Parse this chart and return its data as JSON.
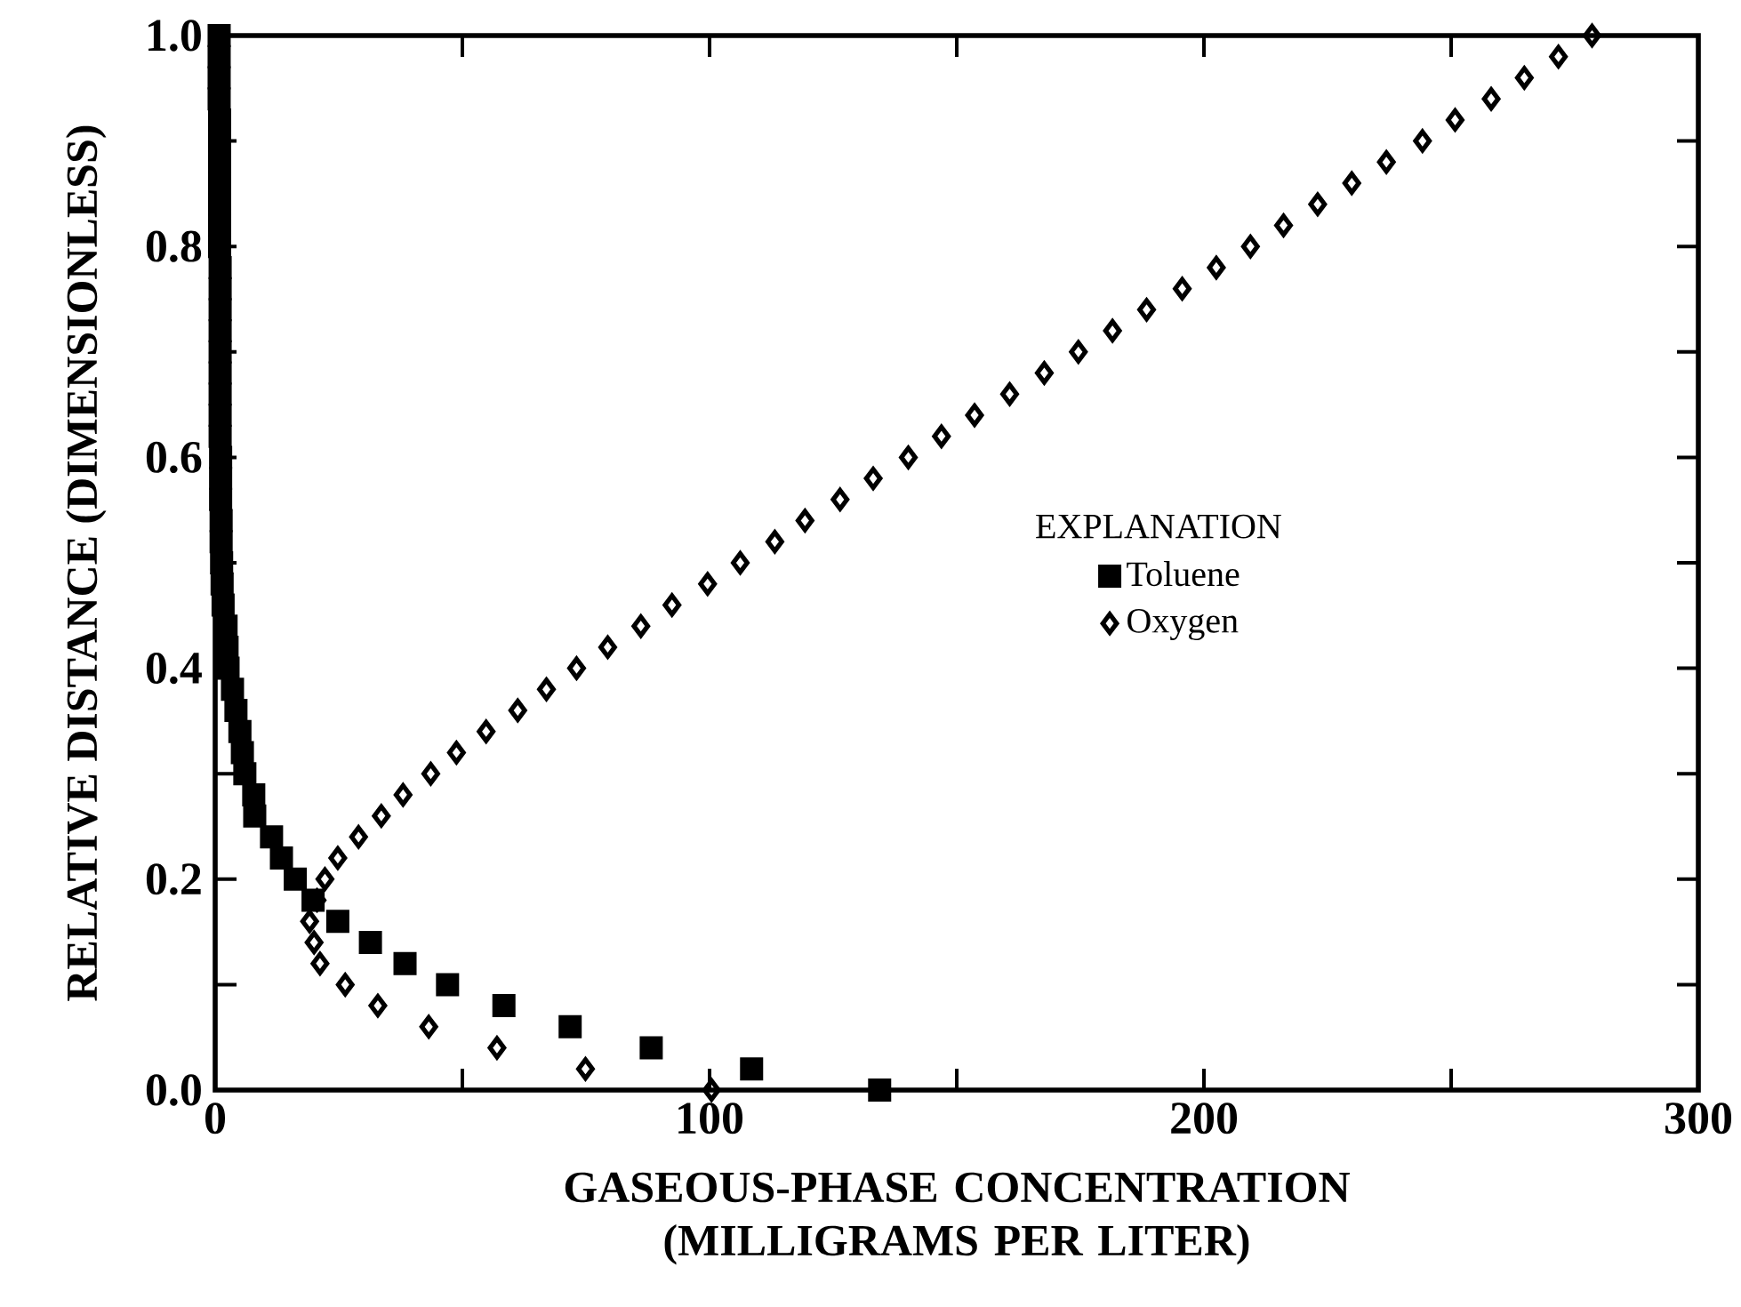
{
  "chart_data": {
    "type": "scatter",
    "xlabel": "GASEOUS-PHASE CONCENTRATION (MILLIGRAMS PER LITER)",
    "ylabel": "RELATIVE DISTANCE (DIMENSIONLESS)",
    "legend_title": "EXPLANATION",
    "legend": "right",
    "grid": false,
    "xlim": [
      0,
      300
    ],
    "ylim": [
      0,
      1.0
    ],
    "xticks": [
      0,
      {
        "value": 50,
        "label": null
      },
      100,
      {
        "value": 150,
        "label": null
      },
      200,
      {
        "value": 250,
        "label": null
      },
      300
    ],
    "yticks": [
      {
        "value": 0,
        "label": "0.0"
      },
      {
        "value": 0.1,
        "label": null
      },
      {
        "value": 0.2,
        "label": "0.2"
      },
      {
        "value": 0.3,
        "label": null
      },
      {
        "value": 0.4,
        "label": "0.4"
      },
      {
        "value": 0.5,
        "label": null
      },
      {
        "value": 0.6,
        "label": "0.6"
      },
      {
        "value": 0.7,
        "label": null
      },
      {
        "value": 0.8,
        "label": "0.8"
      },
      {
        "value": 0.9,
        "label": null
      },
      {
        "value": 1.0,
        "label": "1.0"
      }
    ],
    "series": [
      {
        "name": "Toluene",
        "color": "#000000",
        "marker": "square",
        "x": [
          134.4,
          108.5,
          88.2,
          71.8,
          58.4,
          47.0,
          38.4,
          31.4,
          24.8,
          19.8,
          16.2,
          13.4,
          11.4,
          8.0,
          7.8,
          6.0,
          5.5,
          5.0,
          4.2,
          3.5,
          2.6,
          2.4,
          2.2,
          1.6,
          1.4,
          1.3,
          1.2,
          1.2,
          1.1,
          1.1,
          1.1,
          1.0,
          1.0,
          1.0,
          1.0,
          1.0,
          1.0,
          1.0,
          1.0,
          1.0,
          0.9,
          0.9,
          0.9,
          0.9,
          0.9,
          0.9,
          0.9,
          0.8,
          0.8,
          0.8,
          0.8
        ],
        "values": [
          0.0,
          0.02,
          0.04,
          0.06,
          0.08,
          0.1,
          0.12,
          0.14,
          0.16,
          0.18,
          0.2,
          0.22,
          0.24,
          0.26,
          0.28,
          0.3,
          0.32,
          0.34,
          0.36,
          0.38,
          0.4,
          0.42,
          0.44,
          0.46,
          0.48,
          0.5,
          0.52,
          0.54,
          0.56,
          0.58,
          0.6,
          0.62,
          0.64,
          0.66,
          0.68,
          0.7,
          0.72,
          0.74,
          0.76,
          0.78,
          0.8,
          0.82,
          0.84,
          0.86,
          0.88,
          0.9,
          0.92,
          0.94,
          0.96,
          0.98,
          1.0
        ]
      },
      {
        "name": "Oxygen",
        "color": "#000000",
        "marker": "diamond",
        "x": [
          100.4,
          74.9,
          57.0,
          43.2,
          32.9,
          26.3,
          21.2,
          20.0,
          19.1,
          20.6,
          22.2,
          24.8,
          29.0,
          33.6,
          38.0,
          43.6,
          48.8,
          54.8,
          61.2,
          67.0,
          73.1,
          79.4,
          86.1,
          92.4,
          99.6,
          106.2,
          113.2,
          119.3,
          126.4,
          133.1,
          140.2,
          146.9,
          153.6,
          160.7,
          167.7,
          174.6,
          181.5,
          188.4,
          195.6,
          202.5,
          209.4,
          216.1,
          223.0,
          229.9,
          236.9,
          244.2,
          250.8,
          258.1,
          264.8,
          271.7,
          278.5
        ],
        "values": [
          0.0,
          0.02,
          0.04,
          0.06,
          0.08,
          0.1,
          0.12,
          0.14,
          0.16,
          0.18,
          0.2,
          0.22,
          0.24,
          0.26,
          0.28,
          0.3,
          0.32,
          0.34,
          0.36,
          0.38,
          0.4,
          0.42,
          0.44,
          0.46,
          0.48,
          0.5,
          0.52,
          0.54,
          0.56,
          0.58,
          0.6,
          0.62,
          0.64,
          0.66,
          0.68,
          0.7,
          0.72,
          0.74,
          0.76,
          0.78,
          0.8,
          0.82,
          0.84,
          0.86,
          0.88,
          0.9,
          0.92,
          0.94,
          0.96,
          0.98,
          1.0
        ]
      }
    ]
  }
}
